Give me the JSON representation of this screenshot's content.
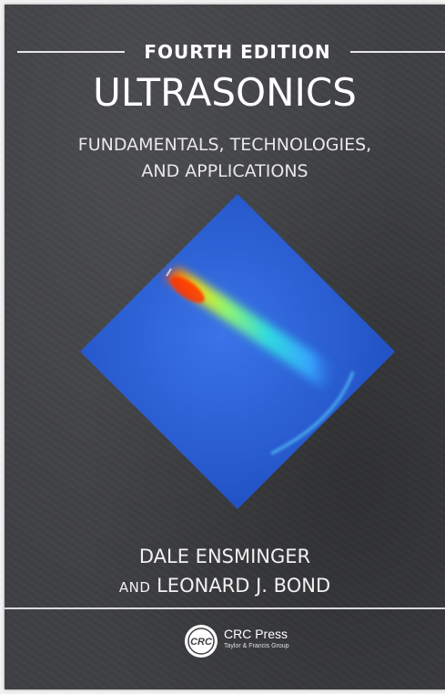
{
  "cover": {
    "edition": "FOURTH EDITION",
    "title": "ULTRASONICS",
    "subtitle_line1": "FUNDAMENTALS, TECHNOLOGIES,",
    "subtitle_line2": "AND APPLICATIONS",
    "author1": "DALE ENSMINGER",
    "author2_and": "AND",
    "author2_name": "LEONARD J. BOND",
    "publisher": {
      "logo_text": "CRC",
      "name": "CRC Press",
      "group": "Taylor & Francis Group"
    }
  },
  "colors": {
    "background": "#3f4043",
    "image_field": "#2b5fd6",
    "text": "#ffffff"
  }
}
